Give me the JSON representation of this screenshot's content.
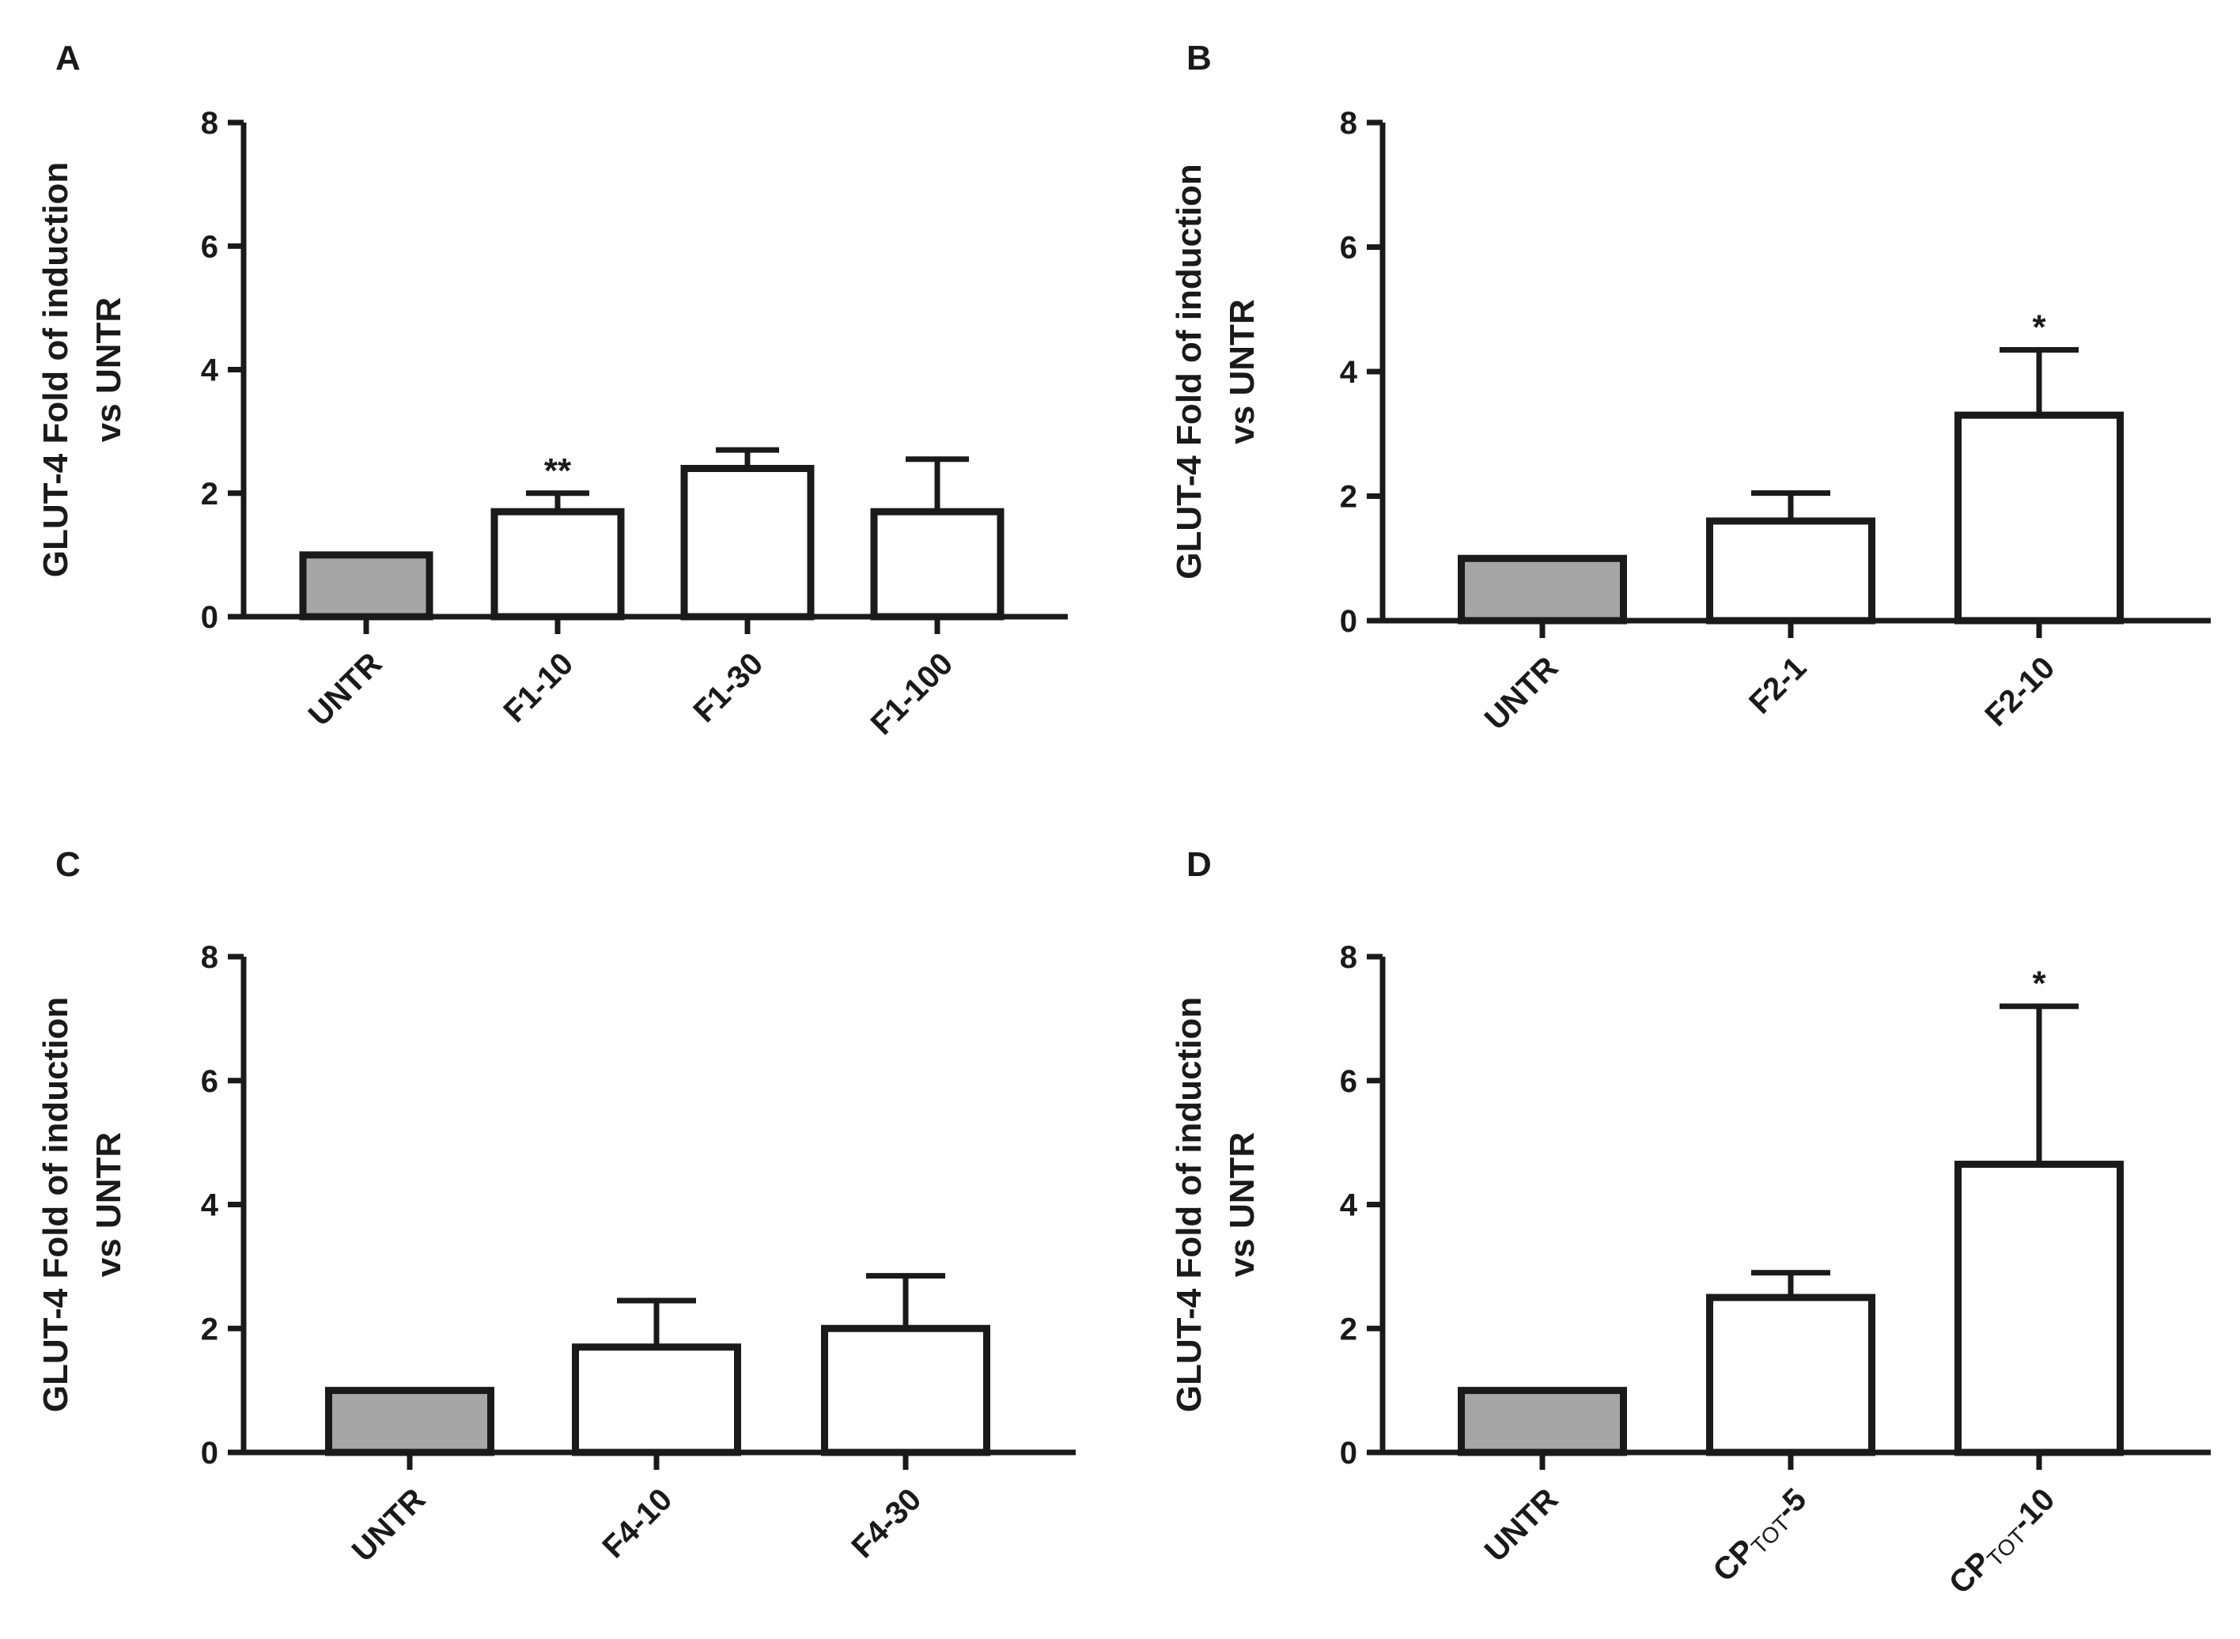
{
  "colors": {
    "control_fill": "#a6a6a6",
    "treatment_fill": "#ffffff",
    "stroke": "#1a1a1a"
  },
  "chart_data": [
    {
      "panel": "A",
      "type": "bar",
      "ylabel_line1": "GLUT-4 Fold of induction",
      "ylabel_line2": "vs UNTR",
      "ylim": [
        0,
        8
      ],
      "yticks": [
        "0",
        "2",
        "4",
        "6",
        "8"
      ],
      "categories": [
        {
          "label": "UNTR",
          "sub": "",
          "suffix": ""
        },
        {
          "label": "F1-10",
          "sub": "",
          "suffix": ""
        },
        {
          "label": "F1-30",
          "sub": "",
          "suffix": ""
        },
        {
          "label": "F1-100",
          "sub": "",
          "suffix": ""
        }
      ],
      "values": [
        1.0,
        1.7,
        2.4,
        1.7
      ],
      "errors": [
        0.0,
        0.3,
        0.3,
        0.85
      ],
      "significance": [
        "",
        "**",
        "",
        ""
      ]
    },
    {
      "panel": "B",
      "type": "bar",
      "ylabel_line1": "GLUT-4 Fold of induction",
      "ylabel_line2": "vs UNTR",
      "ylim": [
        0,
        8
      ],
      "yticks": [
        "0",
        "2",
        "4",
        "6",
        "8"
      ],
      "categories": [
        {
          "label": "UNTR",
          "sub": "",
          "suffix": ""
        },
        {
          "label": "F2-1",
          "sub": "",
          "suffix": ""
        },
        {
          "label": "F2-10",
          "sub": "",
          "suffix": ""
        }
      ],
      "values": [
        1.0,
        1.6,
        3.3
      ],
      "errors": [
        0.0,
        0.45,
        1.05
      ],
      "significance": [
        "",
        "",
        "*"
      ]
    },
    {
      "panel": "C",
      "type": "bar",
      "ylabel_line1": "GLUT-4 Fold of induction",
      "ylabel_line2": "vs UNTR",
      "ylim": [
        0,
        8
      ],
      "yticks": [
        "0",
        "2",
        "4",
        "6",
        "8"
      ],
      "categories": [
        {
          "label": "UNTR",
          "sub": "",
          "suffix": ""
        },
        {
          "label": "F4-10",
          "sub": "",
          "suffix": ""
        },
        {
          "label": "F4-30",
          "sub": "",
          "suffix": ""
        }
      ],
      "values": [
        1.0,
        1.7,
        2.0
      ],
      "errors": [
        0.0,
        0.75,
        0.85
      ],
      "significance": [
        "",
        "",
        ""
      ]
    },
    {
      "panel": "D",
      "type": "bar",
      "ylabel_line1": "GLUT-4 Fold of induction",
      "ylabel_line2": "vs UNTR",
      "ylim": [
        0,
        8
      ],
      "yticks": [
        "0",
        "2",
        "4",
        "6",
        "8"
      ],
      "categories": [
        {
          "label": "UNTR",
          "sub": "",
          "suffix": ""
        },
        {
          "label": "CP",
          "sub": "TOT",
          "suffix": "-5"
        },
        {
          "label": "CP",
          "sub": "TOT",
          "suffix": "-10"
        }
      ],
      "values": [
        1.0,
        2.5,
        4.65
      ],
      "errors": [
        0.0,
        0.4,
        2.55
      ],
      "significance": [
        "",
        "",
        "*"
      ]
    }
  ]
}
